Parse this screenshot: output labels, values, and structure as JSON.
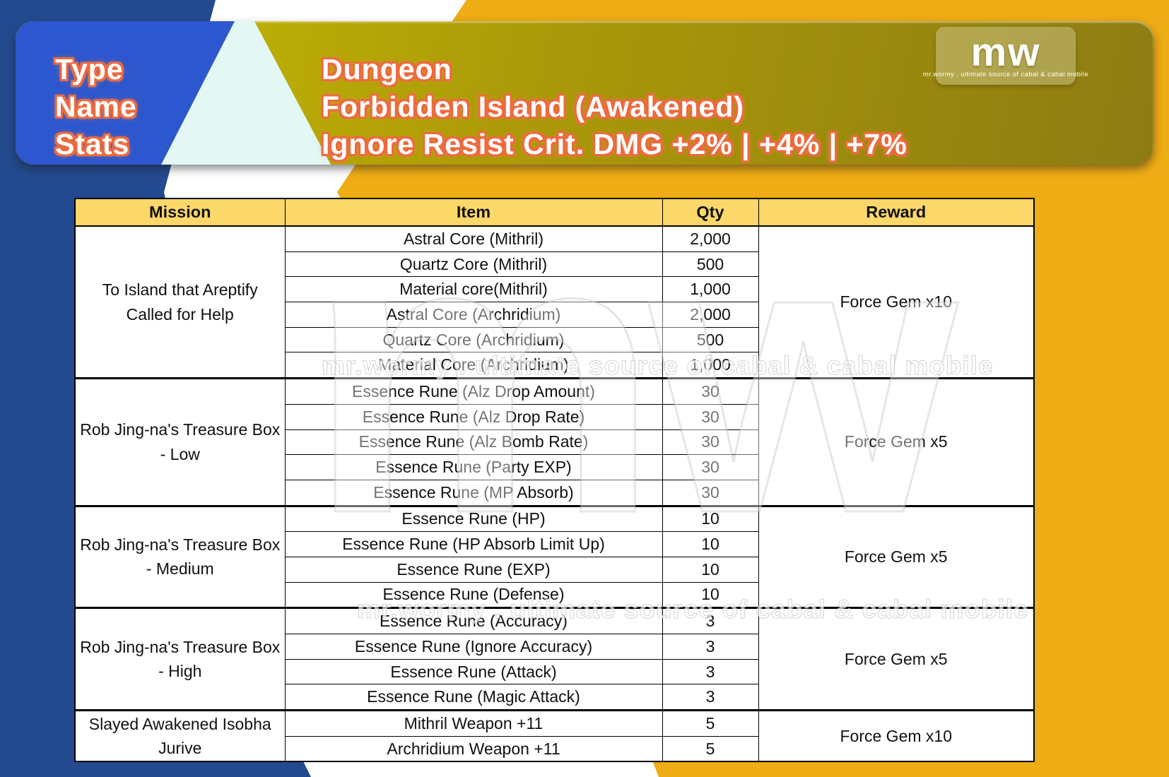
{
  "banner": {
    "labels": [
      "Type",
      "Name",
      "Stats"
    ],
    "values": [
      "Dungeon",
      "Forbidden Island (Awakened)",
      "Ignore Resist Crit. DMG +2% |  +4% |  +7%"
    ],
    "logo": {
      "text": "mw",
      "tagline": "mr.wormy . ultimate source of cabal & cabal mobile"
    }
  },
  "table": {
    "headers": [
      "Mission",
      "Item",
      "Qty",
      "Reward"
    ],
    "groups": [
      {
        "mission": "To Island that Areptify Called for Help",
        "reward": "Force Gem x10",
        "items": [
          {
            "item": "Astral Core (Mithril)",
            "qty": "2,000"
          },
          {
            "item": "Quartz Core (Mithril)",
            "qty": "500"
          },
          {
            "item": "Material core(Mithril)",
            "qty": "1,000"
          },
          {
            "item": "Astral Core (Archridium)",
            "qty": "2,000"
          },
          {
            "item": "Quartz Core (Archridium)",
            "qty": "500"
          },
          {
            "item": "Material Core (Archridium)",
            "qty": "1,000"
          }
        ]
      },
      {
        "mission": "Rob Jing-na's Treasure Box - Low",
        "reward": "Force Gem x5",
        "items": [
          {
            "item": "Essence Rune (Alz Drop Amount)",
            "qty": "30"
          },
          {
            "item": "Essence Rune (Alz Drop Rate)",
            "qty": "30"
          },
          {
            "item": "Essence Rune (Alz Bomb Rate)",
            "qty": "30"
          },
          {
            "item": "Essence Rune (Party EXP)",
            "qty": "30"
          },
          {
            "item": "Essence Rune (MP Absorb)",
            "qty": "30"
          }
        ]
      },
      {
        "mission": "Rob Jing-na's Treasure Box - Medium",
        "reward": "Force Gem x5",
        "items": [
          {
            "item": "Essence Rune (HP)",
            "qty": "10"
          },
          {
            "item": "Essence Rune (HP Absorb Limit Up)",
            "qty": "10"
          },
          {
            "item": "Essence Rune (EXP)",
            "qty": "10"
          },
          {
            "item": "Essence Rune (Defense)",
            "qty": "10"
          }
        ]
      },
      {
        "mission": "Rob Jing-na's Treasure Box - High",
        "reward": "Force Gem x5",
        "items": [
          {
            "item": "Essence Rune (Accuracy)",
            "qty": "3"
          },
          {
            "item": "Essence Rune (Ignore Accuracy)",
            "qty": "3"
          },
          {
            "item": "Essence Rune (Attack)",
            "qty": "3"
          },
          {
            "item": "Essence Rune (Magic Attack)",
            "qty": "3"
          }
        ]
      },
      {
        "mission": "Slayed Awakened Isobha Jurive",
        "reward": "Force Gem x10",
        "items": [
          {
            "item": "Mithril Weapon +11",
            "qty": "5"
          },
          {
            "item": "Archridium Weapon +11",
            "qty": "5"
          }
        ]
      }
    ]
  },
  "watermark": {
    "mw": "mw",
    "tagline": "mr.wormy . ultimate source of cabal & cabal mobile"
  },
  "colors": {
    "navy": "#234a8e",
    "gold": "#eeac15",
    "banner_blue": "#2d57cf",
    "banner_cyan": "#e3f7f5",
    "olive_dark": "#8d7c12",
    "olive_light": "#c9bd04",
    "header_bg": "#fcd769"
  }
}
